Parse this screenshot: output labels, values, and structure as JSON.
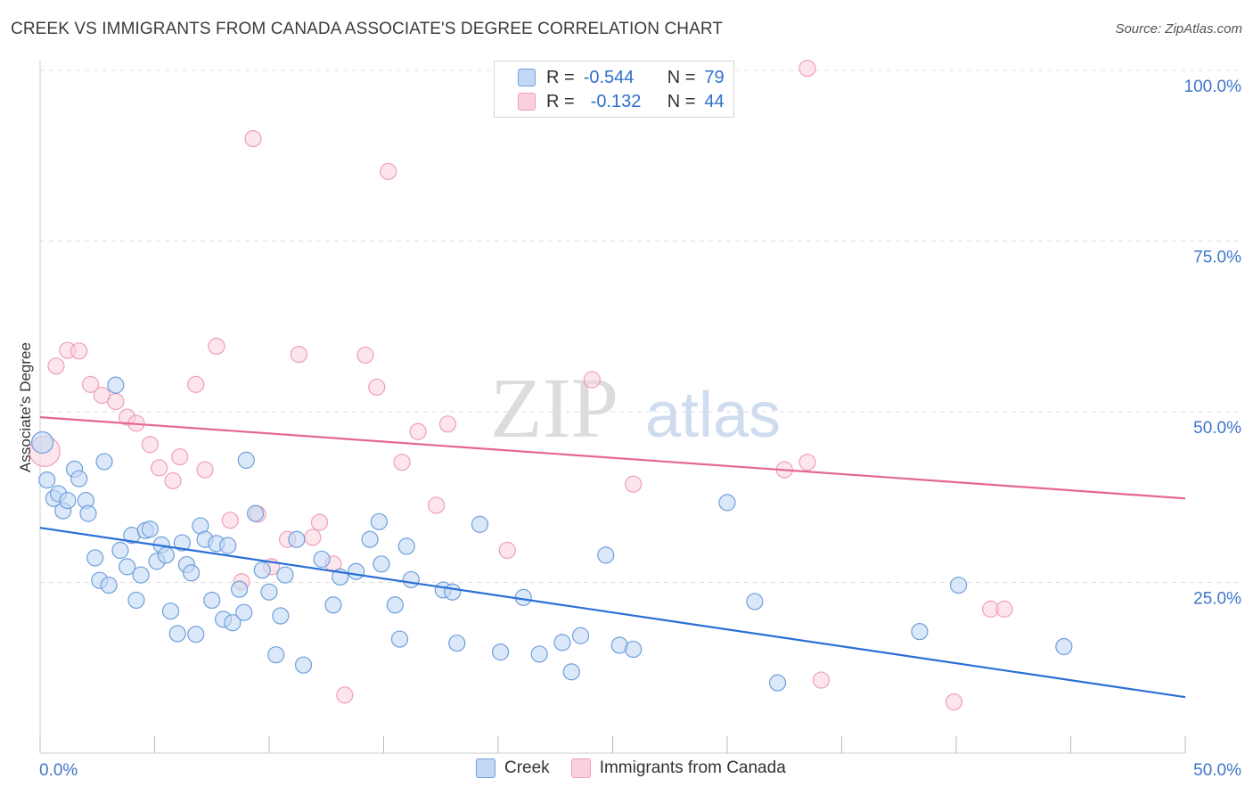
{
  "header": {
    "title": "CREEK VS IMMIGRANTS FROM CANADA ASSOCIATE'S DEGREE CORRELATION CHART",
    "source": "Source: ZipAtlas.com"
  },
  "legend": {
    "rows": [
      {
        "r_label": "R =",
        "r_value": "-0.544",
        "n_label": "N =",
        "n_value": "79"
      },
      {
        "r_label": "R =",
        "r_value": "-0.132",
        "n_label": "N =",
        "n_value": "44"
      }
    ]
  },
  "bottom_legend": {
    "series_a": "Creek",
    "series_b": "Immigrants from Canada"
  },
  "watermark": {
    "zip": "ZIP",
    "atlas": "atlas"
  },
  "colors": {
    "creek_fill": "#c3d8f5",
    "creek_stroke": "#6f9fdc",
    "creek_line": "#2a6fd6",
    "canada_fill": "#fbd0dc",
    "canada_stroke": "#ef9fb6",
    "canada_line": "#e4678e",
    "axis_label": "#3f76c9",
    "grid": "#dddddd"
  },
  "chart_data": {
    "type": "scatter",
    "title": "CREEK VS IMMIGRANTS FROM CANADA ASSOCIATE'S DEGREE CORRELATION CHART",
    "xlabel": "",
    "ylabel": "Associate's Degree",
    "xlim": [
      0,
      50
    ],
    "ylim": [
      0,
      100
    ],
    "x_tick_labels": [
      "0.0%",
      "50.0%"
    ],
    "y_ticks": [
      25,
      50,
      75,
      100
    ],
    "y_tick_labels": [
      "25.0%",
      "50.0%",
      "75.0%",
      "100.0%"
    ],
    "grid": true,
    "series": [
      {
        "name": "Creek",
        "r": -0.544,
        "n": 79,
        "trend": {
          "x": [
            0,
            50
          ],
          "y": [
            33.0,
            8.2
          ]
        },
        "points": [
          [
            0.1,
            45.5
          ],
          [
            0.3,
            40.0
          ],
          [
            0.6,
            37.3
          ],
          [
            0.8,
            38.0
          ],
          [
            1.0,
            35.5
          ],
          [
            1.2,
            37.0
          ],
          [
            1.5,
            41.6
          ],
          [
            1.7,
            40.2
          ],
          [
            2.0,
            37.0
          ],
          [
            2.1,
            35.1
          ],
          [
            2.4,
            28.6
          ],
          [
            2.6,
            25.3
          ],
          [
            2.8,
            42.7
          ],
          [
            3.0,
            24.6
          ],
          [
            3.3,
            53.9
          ],
          [
            3.5,
            29.7
          ],
          [
            3.8,
            27.3
          ],
          [
            4.0,
            31.9
          ],
          [
            4.2,
            22.4
          ],
          [
            4.4,
            26.1
          ],
          [
            4.6,
            32.6
          ],
          [
            4.8,
            32.8
          ],
          [
            5.1,
            28.1
          ],
          [
            5.3,
            30.5
          ],
          [
            5.5,
            29.0
          ],
          [
            5.7,
            20.8
          ],
          [
            6.0,
            17.5
          ],
          [
            6.2,
            30.8
          ],
          [
            6.4,
            27.6
          ],
          [
            6.6,
            26.4
          ],
          [
            6.8,
            17.4
          ],
          [
            7.0,
            33.3
          ],
          [
            7.2,
            31.3
          ],
          [
            7.5,
            22.4
          ],
          [
            7.7,
            30.7
          ],
          [
            8.0,
            19.6
          ],
          [
            8.2,
            30.4
          ],
          [
            8.4,
            19.1
          ],
          [
            8.7,
            24.0
          ],
          [
            8.9,
            20.6
          ],
          [
            9.0,
            42.9
          ],
          [
            9.4,
            35.1
          ],
          [
            9.7,
            26.8
          ],
          [
            10.0,
            23.6
          ],
          [
            10.3,
            14.4
          ],
          [
            10.5,
            20.1
          ],
          [
            10.7,
            26.1
          ],
          [
            11.2,
            31.3
          ],
          [
            11.5,
            12.9
          ],
          [
            12.3,
            28.4
          ],
          [
            12.8,
            21.7
          ],
          [
            13.1,
            25.8
          ],
          [
            13.8,
            26.6
          ],
          [
            14.4,
            31.3
          ],
          [
            14.8,
            33.9
          ],
          [
            14.9,
            27.7
          ],
          [
            15.5,
            21.7
          ],
          [
            15.7,
            16.7
          ],
          [
            16.0,
            30.3
          ],
          [
            16.2,
            25.4
          ],
          [
            17.6,
            23.9
          ],
          [
            18.0,
            23.6
          ],
          [
            18.2,
            16.1
          ],
          [
            19.2,
            33.5
          ],
          [
            20.1,
            14.8
          ],
          [
            21.1,
            22.8
          ],
          [
            21.8,
            14.5
          ],
          [
            22.8,
            16.2
          ],
          [
            23.2,
            11.9
          ],
          [
            23.6,
            17.2
          ],
          [
            24.7,
            29.0
          ],
          [
            25.3,
            15.8
          ],
          [
            25.9,
            15.2
          ],
          [
            30.0,
            36.7
          ],
          [
            31.2,
            22.2
          ],
          [
            32.2,
            10.3
          ],
          [
            38.4,
            17.8
          ],
          [
            40.1,
            24.6
          ],
          [
            44.7,
            15.6
          ]
        ]
      },
      {
        "name": "Immigrants from Canada",
        "r": -0.132,
        "n": 44,
        "trend": {
          "x": [
            0,
            50
          ],
          "y": [
            49.2,
            37.3
          ]
        },
        "points": [
          [
            0.2,
            44.2
          ],
          [
            0.7,
            56.7
          ],
          [
            1.2,
            59.0
          ],
          [
            1.7,
            58.9
          ],
          [
            2.2,
            54.0
          ],
          [
            2.7,
            52.4
          ],
          [
            3.3,
            51.5
          ],
          [
            3.8,
            49.2
          ],
          [
            4.2,
            48.3
          ],
          [
            4.8,
            45.2
          ],
          [
            5.2,
            41.8
          ],
          [
            5.8,
            39.9
          ],
          [
            6.1,
            43.4
          ],
          [
            6.8,
            54.0
          ],
          [
            7.2,
            41.5
          ],
          [
            7.7,
            59.6
          ],
          [
            8.3,
            34.1
          ],
          [
            8.8,
            25.1
          ],
          [
            9.3,
            90.0
          ],
          [
            9.5,
            35.0
          ],
          [
            10.1,
            27.3
          ],
          [
            10.8,
            31.3
          ],
          [
            11.3,
            58.4
          ],
          [
            11.9,
            31.6
          ],
          [
            12.2,
            33.8
          ],
          [
            12.8,
            27.7
          ],
          [
            13.3,
            8.5
          ],
          [
            14.2,
            58.3
          ],
          [
            14.7,
            53.6
          ],
          [
            15.2,
            85.2
          ],
          [
            15.8,
            42.6
          ],
          [
            16.5,
            47.1
          ],
          [
            17.3,
            36.3
          ],
          [
            17.8,
            48.2
          ],
          [
            20.4,
            29.7
          ],
          [
            24.1,
            54.7
          ],
          [
            25.9,
            39.4
          ],
          [
            32.5,
            41.5
          ],
          [
            33.5,
            42.6
          ],
          [
            33.5,
            100.3
          ],
          [
            34.1,
            10.7
          ],
          [
            39.9,
            7.5
          ],
          [
            41.5,
            21.1
          ],
          [
            42.1,
            21.1
          ]
        ]
      }
    ]
  }
}
